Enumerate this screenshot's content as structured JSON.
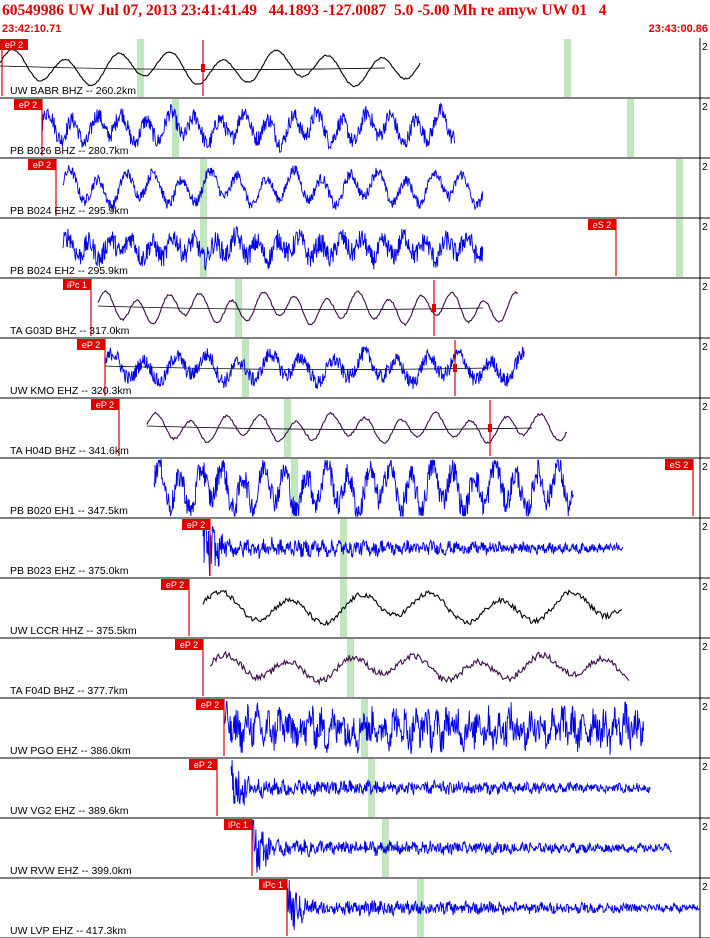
{
  "header": {
    "title": "60549986 UW Jul 07, 2013 23:41:41.49   44.1893 -127.0087  5.0 -5.00 Mh re amyw UW 01   4",
    "start_time": "23:42:10.71",
    "end_time": "23:43:00.86"
  },
  "colors": {
    "header_text": "#e00000",
    "trace_blue": "#0000e6",
    "trace_black": "#000000",
    "trace_purple": "#3a0a4a",
    "pick_red": "#e00000",
    "window_green": "#bfe6bf",
    "panel_border": "#000000"
  },
  "chart_data": {
    "type": "line",
    "title": "60549986 UW Jul 07, 2013 23:41:41.49   44.1893 -127.0087  5.0 -5.00 Mh re amyw UW 01   4",
    "x_axis": {
      "start": "23:42:10.71",
      "end": "23:43:00.86",
      "units": "time"
    },
    "channels": [
      {
        "label": "UW BABR BHZ -- 260.2km",
        "scale": "2",
        "color": "black",
        "style": "smooth",
        "pick": "eP 2",
        "pick_flag": "left",
        "pick_time_frac": 0.0,
        "trace_start": 0.0,
        "trace_end": 0.6,
        "amp": 0.55,
        "period": 0.075,
        "noise": 0.02,
        "green": [
          0.2,
          0.81
        ],
        "marks": [
          0.29
        ],
        "baseline": true
      },
      {
        "label": "PB B026 BHZ -- 280.7km",
        "scale": "2",
        "color": "blue",
        "style": "noisy",
        "pick": "eP 2",
        "pick_time_frac": 0.06,
        "trace_start": 0.06,
        "trace_end": 0.65,
        "amp": 0.5,
        "period": 0.035,
        "noise": 0.25,
        "green": [
          0.25,
          0.9
        ],
        "marks": []
      },
      {
        "label": "PB B024 EHZ -- 295.9km",
        "scale": "2",
        "color": "blue",
        "style": "noisy",
        "pick": "eP 2",
        "pick_time_frac": 0.08,
        "trace_start": 0.09,
        "trace_end": 0.69,
        "amp": 0.55,
        "period": 0.04,
        "noise": 0.15,
        "green": [
          0.29,
          0.97
        ],
        "marks": []
      },
      {
        "label": "PB B024 EH2 -- 295.9km",
        "scale": "2",
        "color": "blue",
        "style": "noisy",
        "pick": "eS 2",
        "pick_time_frac": 0.88,
        "trace_start": 0.09,
        "trace_end": 0.69,
        "amp": 0.35,
        "period": 0.03,
        "noise": 0.45,
        "green": [
          0.29,
          0.97
        ],
        "marks": []
      },
      {
        "label": "TA G03D BHZ -- 317.0km",
        "scale": "2",
        "color": "purple",
        "style": "smooth",
        "pick": "iPc 1",
        "pick_time_frac": 0.13,
        "trace_start": 0.14,
        "trace_end": 0.74,
        "amp": 0.5,
        "period": 0.045,
        "noise": 0.03,
        "green": [
          0.34
        ],
        "marks": [
          0.62
        ],
        "baseline": true
      },
      {
        "label": "UW KMO EHZ -- 320.3km",
        "scale": "2",
        "color": "blue",
        "style": "noisy",
        "pick": "eP 2",
        "pick_time_frac": 0.15,
        "trace_start": 0.15,
        "trace_end": 0.75,
        "amp": 0.45,
        "period": 0.045,
        "noise": 0.25,
        "green": [
          0.35
        ],
        "marks": [
          0.65
        ],
        "baseline": true
      },
      {
        "label": "TA H04D BHZ -- 341.6km",
        "scale": "2",
        "color": "purple",
        "style": "smooth",
        "pick": "eP 2",
        "pick_time_frac": 0.17,
        "trace_start": 0.21,
        "trace_end": 0.81,
        "amp": 0.45,
        "period": 0.05,
        "noise": 0.04,
        "green": [
          0.41
        ],
        "marks": [
          0.7
        ],
        "baseline": true
      },
      {
        "label": "PB B020 EH1 -- 347.5km",
        "scale": "2",
        "color": "blue",
        "style": "noisy",
        "pick": "eS 2",
        "pick_time_frac": 0.99,
        "trace_start": 0.22,
        "trace_end": 0.82,
        "amp": 0.75,
        "period": 0.03,
        "noise": 0.25,
        "green": [
          0.42
        ],
        "marks": []
      },
      {
        "label": "PB B023 EHZ -- 375.0km",
        "scale": "2",
        "color": "blue",
        "style": "burst",
        "pick": "eP 2",
        "pick_time_frac": 0.3,
        "trace_start": 0.29,
        "trace_end": 0.89,
        "amp": 0.25,
        "period": 0.012,
        "noise": 0.5,
        "green": [
          0.49
        ],
        "marks": []
      },
      {
        "label": "UW LCCR HHZ -- 375.5km",
        "scale": "2",
        "color": "black",
        "style": "smooth",
        "pick": "eP 2",
        "pick_time_frac": 0.27,
        "trace_start": 0.29,
        "trace_end": 0.89,
        "amp": 0.5,
        "period": 0.1,
        "noise": 0.08,
        "green": [
          0.49
        ],
        "marks": []
      },
      {
        "label": "TA F04D BHZ -- 377.7km",
        "scale": "2",
        "color": "purple",
        "style": "smooth",
        "pick": "eP 2",
        "pick_time_frac": 0.29,
        "trace_start": 0.3,
        "trace_end": 0.9,
        "amp": 0.4,
        "period": 0.09,
        "noise": 0.12,
        "green": [
          0.5
        ],
        "marks": []
      },
      {
        "label": "UW PGO EHZ -- 386.0km",
        "scale": "2",
        "color": "blue",
        "style": "noisy",
        "pick": "eP 2",
        "pick_time_frac": 0.32,
        "trace_start": 0.32,
        "trace_end": 0.92,
        "amp": 0.35,
        "period": 0.015,
        "noise": 0.7,
        "green": [
          0.52
        ],
        "marks": []
      },
      {
        "label": "UW VG2 EHZ -- 389.6km",
        "scale": "2",
        "color": "blue",
        "style": "burst",
        "pick": "eP 2",
        "pick_time_frac": 0.31,
        "trace_start": 0.33,
        "trace_end": 0.93,
        "amp": 0.2,
        "period": 0.012,
        "noise": 0.6,
        "green": [
          0.53
        ],
        "marks": []
      },
      {
        "label": "UW RVW EHZ -- 399.0km",
        "scale": "2",
        "color": "blue",
        "style": "burst",
        "pick": "iPc 1",
        "pick_time_frac": 0.36,
        "trace_start": 0.36,
        "trace_end": 0.96,
        "amp": 0.18,
        "period": 0.012,
        "noise": 0.6,
        "green": [
          0.55
        ],
        "marks": []
      },
      {
        "label": "UW LVP EHZ -- 417.3km",
        "scale": "2",
        "color": "blue",
        "style": "burst",
        "pick": "iPc 1",
        "pick_time_frac": 0.41,
        "trace_start": 0.41,
        "trace_end": 1.0,
        "amp": 0.18,
        "period": 0.012,
        "noise": 0.6,
        "green": [
          0.6
        ],
        "marks": []
      }
    ]
  }
}
